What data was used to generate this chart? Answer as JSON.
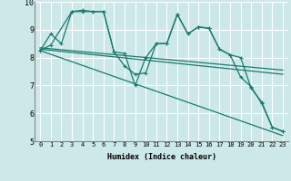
{
  "background_color": "#cce8e8",
  "grid_color": "#ffffff",
  "line_color": "#1a7a6e",
  "xlabel": "Humidex (Indice chaleur)",
  "xlim": [
    -0.5,
    23.5
  ],
  "ylim": [
    5,
    10
  ],
  "yticks": [
    5,
    6,
    7,
    8,
    9,
    10
  ],
  "xticks": [
    0,
    1,
    2,
    3,
    4,
    5,
    6,
    7,
    8,
    9,
    10,
    11,
    12,
    13,
    14,
    15,
    16,
    17,
    18,
    19,
    20,
    21,
    22,
    23
  ],
  "lines": [
    {
      "x": [
        0,
        1,
        3,
        4,
        5,
        6,
        7,
        8,
        9,
        10,
        11,
        12,
        13,
        14,
        15,
        16,
        17,
        18,
        19,
        20,
        21,
        22,
        23
      ],
      "y": [
        8.25,
        8.45,
        9.65,
        9.7,
        9.65,
        9.65,
        8.2,
        8.15,
        7.0,
        8.0,
        8.5,
        8.5,
        9.55,
        8.85,
        9.1,
        9.05,
        8.3,
        8.1,
        7.3,
        6.95,
        6.35,
        5.5,
        5.35
      ],
      "marker": true
    },
    {
      "x": [
        0,
        1,
        2,
        3,
        4,
        5,
        6,
        7,
        8,
        9,
        10,
        11,
        12,
        13,
        14,
        15,
        16,
        17,
        18,
        19,
        20,
        21,
        22,
        23
      ],
      "y": [
        8.25,
        8.85,
        8.5,
        9.65,
        9.65,
        9.65,
        9.65,
        8.2,
        7.7,
        7.4,
        7.45,
        8.5,
        8.5,
        9.55,
        8.85,
        9.1,
        9.05,
        8.3,
        8.1,
        8.0,
        6.9,
        6.4,
        5.5,
        5.35
      ],
      "marker": true
    },
    {
      "x": [
        0,
        23
      ],
      "y": [
        8.25,
        5.2
      ],
      "marker": false
    },
    {
      "x": [
        0,
        23
      ],
      "y": [
        8.3,
        7.4
      ],
      "marker": false
    },
    {
      "x": [
        0,
        23
      ],
      "y": [
        8.35,
        7.55
      ],
      "marker": false
    }
  ]
}
